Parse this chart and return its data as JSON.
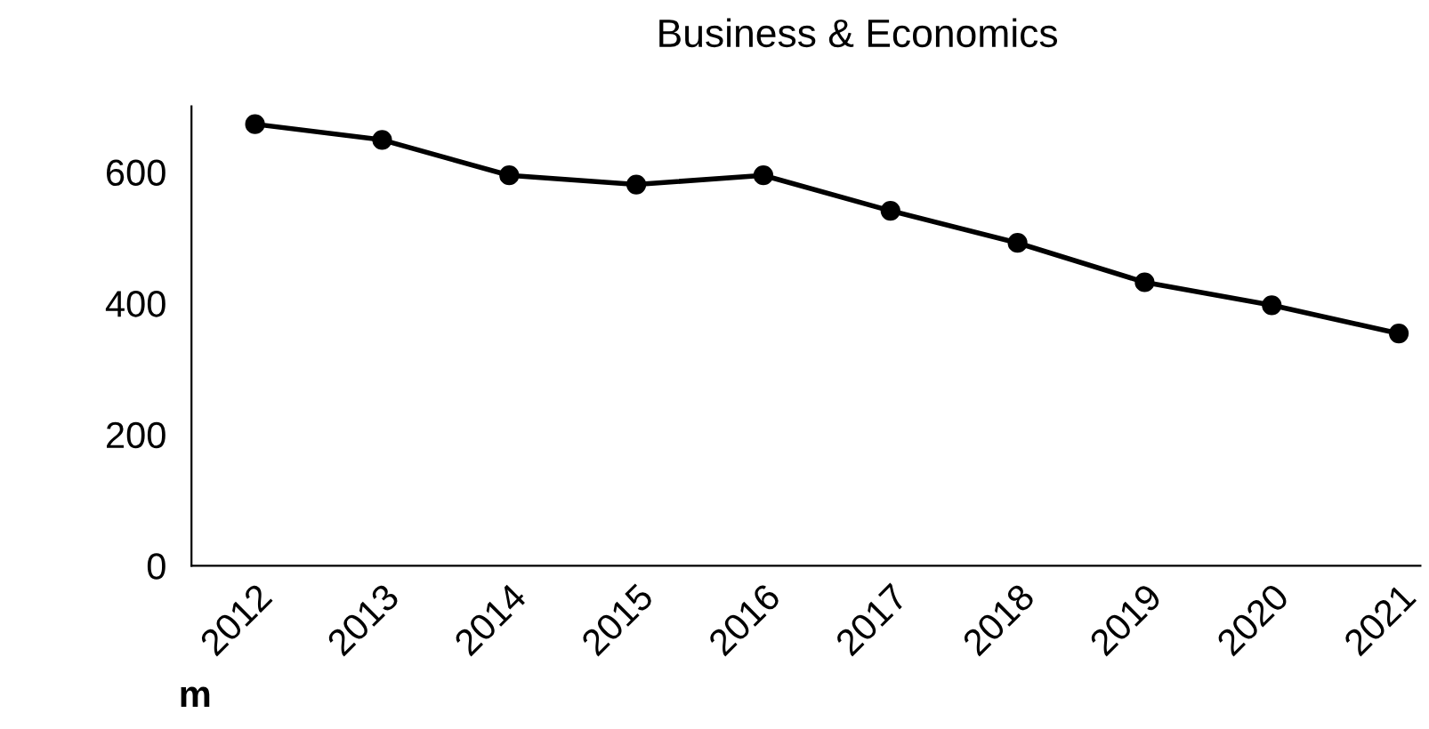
{
  "chart_data": {
    "type": "line",
    "title": "Business & Economics",
    "categories": [
      "2012",
      "2013",
      "2014",
      "2015",
      "2016",
      "2017",
      "2018",
      "2019",
      "2020",
      "2021"
    ],
    "series": [
      {
        "color": "#000000",
        "values": [
          673,
          649,
          595,
          581,
          595,
          541,
          492,
          432,
          397,
          354
        ]
      }
    ],
    "ylim": [
      0,
      700
    ],
    "yticks": [
      0,
      200,
      400,
      600
    ],
    "grid": false,
    "legend": false,
    "marker": "circle",
    "line_style": "solid",
    "annotations": [
      "m"
    ]
  }
}
